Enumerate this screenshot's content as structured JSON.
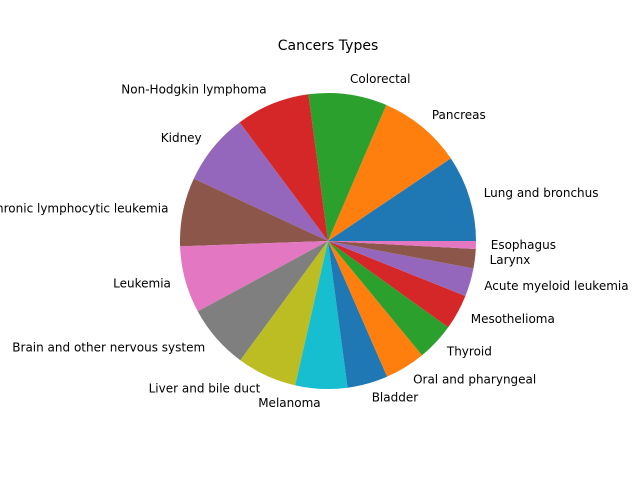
{
  "chart_data": {
    "type": "pie",
    "title": "Cancers Types",
    "start_angle_deg": 0,
    "direction": "counterclockwise",
    "slices": [
      {
        "label": "Lung and bronchus",
        "value": 9.8,
        "color": "#1f77b4"
      },
      {
        "label": "Pancreas",
        "value": 9.5,
        "color": "#ff7f0e"
      },
      {
        "label": "Colorectal",
        "value": 8.9,
        "color": "#2ca02c"
      },
      {
        "label": "Non-Hodgkin lymphoma",
        "value": 8.4,
        "color": "#d62728"
      },
      {
        "label": "Kidney",
        "value": 8.2,
        "color": "#9467bd"
      },
      {
        "label": "Chronic lymphocytic leukemia",
        "value": 7.8,
        "color": "#8c564b"
      },
      {
        "label": "Leukemia",
        "value": 7.6,
        "color": "#e377c2"
      },
      {
        "label": "Brain and other nervous system",
        "value": 7.3,
        "color": "#7f7f7f"
      },
      {
        "label": "Liver and bile duct",
        "value": 6.8,
        "color": "#bcbd22"
      },
      {
        "label": "Melanoma",
        "value": 5.9,
        "color": "#17becf"
      },
      {
        "label": "Bladder",
        "value": 4.6,
        "color": "#1f77b4"
      },
      {
        "label": "Oral and pharyngeal",
        "value": 4.6,
        "color": "#ff7f0e"
      },
      {
        "label": "Thyroid",
        "value": 4.3,
        "color": "#2ca02c"
      },
      {
        "label": "Mesothelioma",
        "value": 4.0,
        "color": "#d62728"
      },
      {
        "label": "Acute myeloid leukemia",
        "value": 3.2,
        "color": "#9467bd"
      },
      {
        "label": "Larynx",
        "value": 2.2,
        "color": "#8c564b"
      },
      {
        "label": "Esophagus",
        "value": 0.9,
        "color": "#e377c2"
      }
    ]
  }
}
